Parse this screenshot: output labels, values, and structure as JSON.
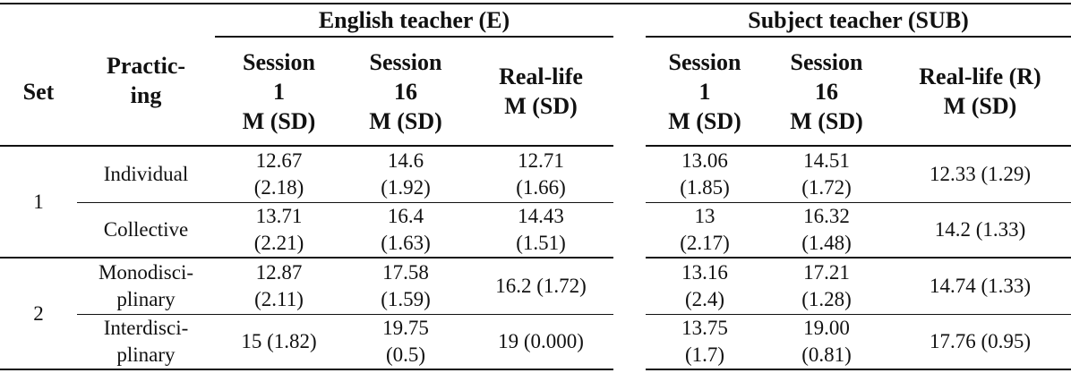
{
  "table": {
    "group_headers": {
      "english": "English teacher (E)",
      "subject": "Subject teacher (SUB)"
    },
    "columns": {
      "set": "Set",
      "practicing": "Practic-\ning",
      "e_session1": "Session\n1\nM (SD)",
      "e_session16": "Session\n16\nM (SD)",
      "e_reallife": "Real-life\nM (SD)",
      "s_session1": "Session\n1\nM (SD)",
      "s_session16": "Session\n16\nM (SD)",
      "s_reallife": "Real-life (R)\nM (SD)"
    },
    "sets": [
      "1",
      "2"
    ],
    "rows": [
      {
        "practicing": "Individual",
        "e_session1": "12.67\n(2.18)",
        "e_session16": "14.6\n(1.92)",
        "e_reallife": "12.71\n(1.66)",
        "s_session1": "13.06\n(1.85)",
        "s_session16": "14.51\n(1.72)",
        "s_reallife": "12.33 (1.29)"
      },
      {
        "practicing": "Collective",
        "e_session1": "13.71\n(2.21)",
        "e_session16": "16.4\n(1.63)",
        "e_reallife": "14.43\n(1.51)",
        "s_session1": "13\n(2.17)",
        "s_session16": "16.32\n(1.48)",
        "s_reallife": "14.2 (1.33)"
      },
      {
        "practicing": "Monodisci-\nplinary",
        "e_session1": "12.87\n(2.11)",
        "e_session16": "17.58\n(1.59)",
        "e_reallife": "16.2 (1.72)",
        "s_session1": "13.16\n(2.4)",
        "s_session16": "17.21\n(1.28)",
        "s_reallife": "14.74 (1.33)"
      },
      {
        "practicing": "Interdisci-\nplinary",
        "e_session1": "15 (1.82)",
        "e_session16": "19.75\n(0.5)",
        "e_reallife": "19 (0.000)",
        "s_session1": "13.75\n(1.7)",
        "s_session16": "19.00\n(0.81)",
        "s_reallife": "17.76 (0.95)"
      }
    ]
  }
}
